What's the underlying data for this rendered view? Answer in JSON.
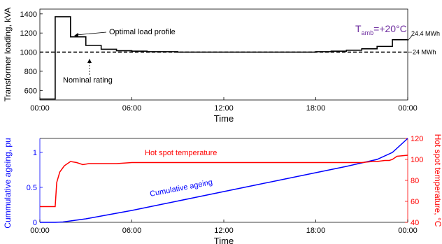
{
  "chart_data": [
    {
      "type": "line",
      "xlabel": "Time",
      "ylabel": "Transformer loading, kVA",
      "xticks": [
        "00:00",
        "06:00",
        "12:00",
        "18:00",
        "00:00"
      ],
      "yticks": [
        600,
        800,
        1000,
        1200,
        1400
      ],
      "xlim": [
        0,
        24
      ],
      "ylim": [
        500,
        1450
      ],
      "grid": false,
      "ambient_label": {
        "main": "T",
        "sub": "amb",
        "value": "=+20°C",
        "color": "#7030a0"
      },
      "annotations": [
        {
          "text": "Optimal load profile",
          "x": 2.2,
          "y": 1250
        },
        {
          "text": "Nominal rating",
          "x": 3.0,
          "y": 1000
        }
      ],
      "right_labels": [
        {
          "text": "24.4 MWh",
          "y": 1120
        },
        {
          "text": "24 MWh",
          "y": 1000
        }
      ],
      "series": [
        {
          "style": "step",
          "color": "#000000",
          "x": [
            0,
            1,
            2,
            3,
            4,
            5,
            6,
            7,
            8,
            9,
            10,
            11,
            12,
            13,
            14,
            15,
            16,
            17,
            18,
            19,
            20,
            21,
            22,
            23,
            24
          ],
          "values": [
            510,
            1370,
            1160,
            1070,
            1030,
            1015,
            1010,
            1005,
            1005,
            1000,
            1000,
            1000,
            1000,
            1000,
            1000,
            1000,
            1000,
            1000,
            1005,
            1010,
            1020,
            1035,
            1060,
            1130,
            1130
          ]
        },
        {
          "style": "dashed",
          "color": "#000000",
          "x": [
            0,
            24
          ],
          "values": [
            1000,
            1000
          ]
        }
      ]
    },
    {
      "type": "line",
      "xlabel": "Time",
      "ylabel": "Cummulative ageing, pu",
      "ylabel_right": "Hot spot temperature, °C",
      "xticks": [
        "00:00",
        "06:00",
        "12:00",
        "18:00",
        "00:00"
      ],
      "yticks_left": [
        "0",
        "0.5",
        "1"
      ],
      "yticks_right": [
        40,
        60,
        80,
        100,
        120
      ],
      "xlim": [
        0,
        24
      ],
      "ylim": [
        0,
        1.2
      ],
      "ylim_right": [
        40,
        120
      ],
      "grid": false,
      "series": [
        {
          "name": "Cumulative ageing",
          "color": "#0000ff",
          "axis": "left",
          "x": [
            0,
            1,
            1.5,
            2,
            3,
            4,
            6,
            8,
            10,
            12,
            14,
            16,
            18,
            20,
            21,
            22,
            23,
            24
          ],
          "values": [
            0,
            0,
            0.005,
            0.02,
            0.05,
            0.09,
            0.17,
            0.26,
            0.35,
            0.44,
            0.53,
            0.62,
            0.71,
            0.8,
            0.85,
            0.9,
            1.0,
            1.2
          ]
        },
        {
          "name": "Hot spot temperature",
          "color": "#ff0000",
          "axis": "right",
          "x": [
            0,
            1,
            1.1,
            1.3,
            1.6,
            2.0,
            2.4,
            2.8,
            3.2,
            3.7,
            4.2,
            5,
            6,
            8,
            12,
            16,
            19,
            20,
            21,
            21.7,
            22,
            22.5,
            22.8,
            23,
            23.3,
            24
          ],
          "values": [
            55,
            55,
            78,
            88,
            94,
            98,
            97,
            95,
            96,
            96,
            96,
            96,
            97,
            97,
            97,
            97,
            97,
            97,
            97,
            98,
            98,
            99,
            99,
            100,
            103,
            104
          ]
        }
      ]
    }
  ]
}
